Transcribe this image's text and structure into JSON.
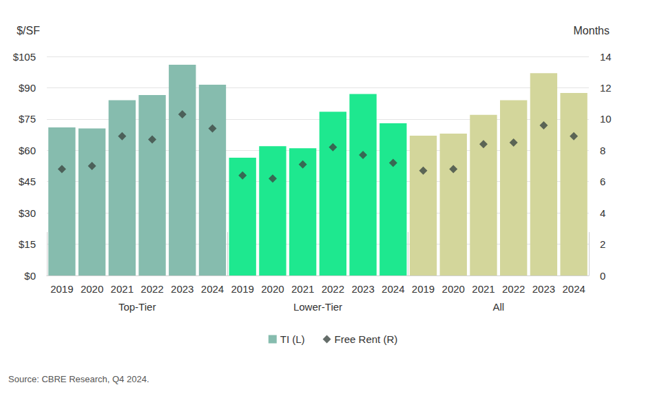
{
  "chart_data": {
    "type": "bar",
    "categories": [
      "2019",
      "2020",
      "2021",
      "2022",
      "2023",
      "2024",
      "2019",
      "2020",
      "2021",
      "2022",
      "2023",
      "2024",
      "2019",
      "2020",
      "2021",
      "2022",
      "2023",
      "2024"
    ],
    "category_groups": [
      "Top-Tier",
      "Top-Tier",
      "Top-Tier",
      "Top-Tier",
      "Top-Tier",
      "Top-Tier",
      "Lower-Tier",
      "Lower-Tier",
      "Lower-Tier",
      "Lower-Tier",
      "Lower-Tier",
      "Lower-Tier",
      "All",
      "All",
      "All",
      "All",
      "All",
      "All"
    ],
    "y_label": "$/SF",
    "y2_label": "Months",
    "ylim": [
      0,
      105
    ],
    "yticks": [
      {
        "value": 0,
        "label": "$0"
      },
      {
        "value": 15,
        "label": "$15"
      },
      {
        "value": 30,
        "label": "$30"
      },
      {
        "value": 45,
        "label": "$45"
      },
      {
        "value": 60,
        "label": "$60"
      },
      {
        "value": 75,
        "label": "$75"
      },
      {
        "value": 90,
        "label": "$90"
      },
      {
        "value": 105,
        "label": "$105"
      }
    ],
    "y2lim": [
      0,
      14
    ],
    "y2ticks": [
      0,
      2,
      4,
      6,
      8,
      10,
      12,
      14
    ],
    "grid": true,
    "legend": "bottom",
    "source": "Source: CBRE Research, Q4 2024.",
    "series": [
      {
        "name": "TI (L)",
        "type": "bar",
        "color": "#86bcae",
        "colors": [
          "#86bcae",
          "#86bcae",
          "#86bcae",
          "#86bcae",
          "#86bcae",
          "#86bcae",
          "#1ee88f",
          "#1ee88f",
          "#1ee88f",
          "#1ee88f",
          "#1ee88f",
          "#1ee88f",
          "#d3d69b",
          "#d3d69b",
          "#d3d69b",
          "#d3d69b",
          "#d3d69b",
          "#d3d69b"
        ],
        "values": [
          71,
          70.5,
          84,
          86.5,
          101,
          91.5,
          56.5,
          62,
          61,
          78.5,
          87,
          73,
          67,
          68,
          77,
          84,
          97,
          87.5
        ]
      },
      {
        "name": "Free Rent (R)",
        "type": "scatter",
        "marker": "diamond",
        "color": "#3d4944",
        "axis": "y2",
        "values": [
          6.8,
          7.0,
          8.9,
          8.7,
          10.3,
          9.4,
          6.4,
          6.2,
          7.1,
          8.2,
          7.7,
          7.2,
          6.7,
          6.8,
          8.4,
          8.5,
          9.6,
          8.9
        ]
      }
    ]
  }
}
